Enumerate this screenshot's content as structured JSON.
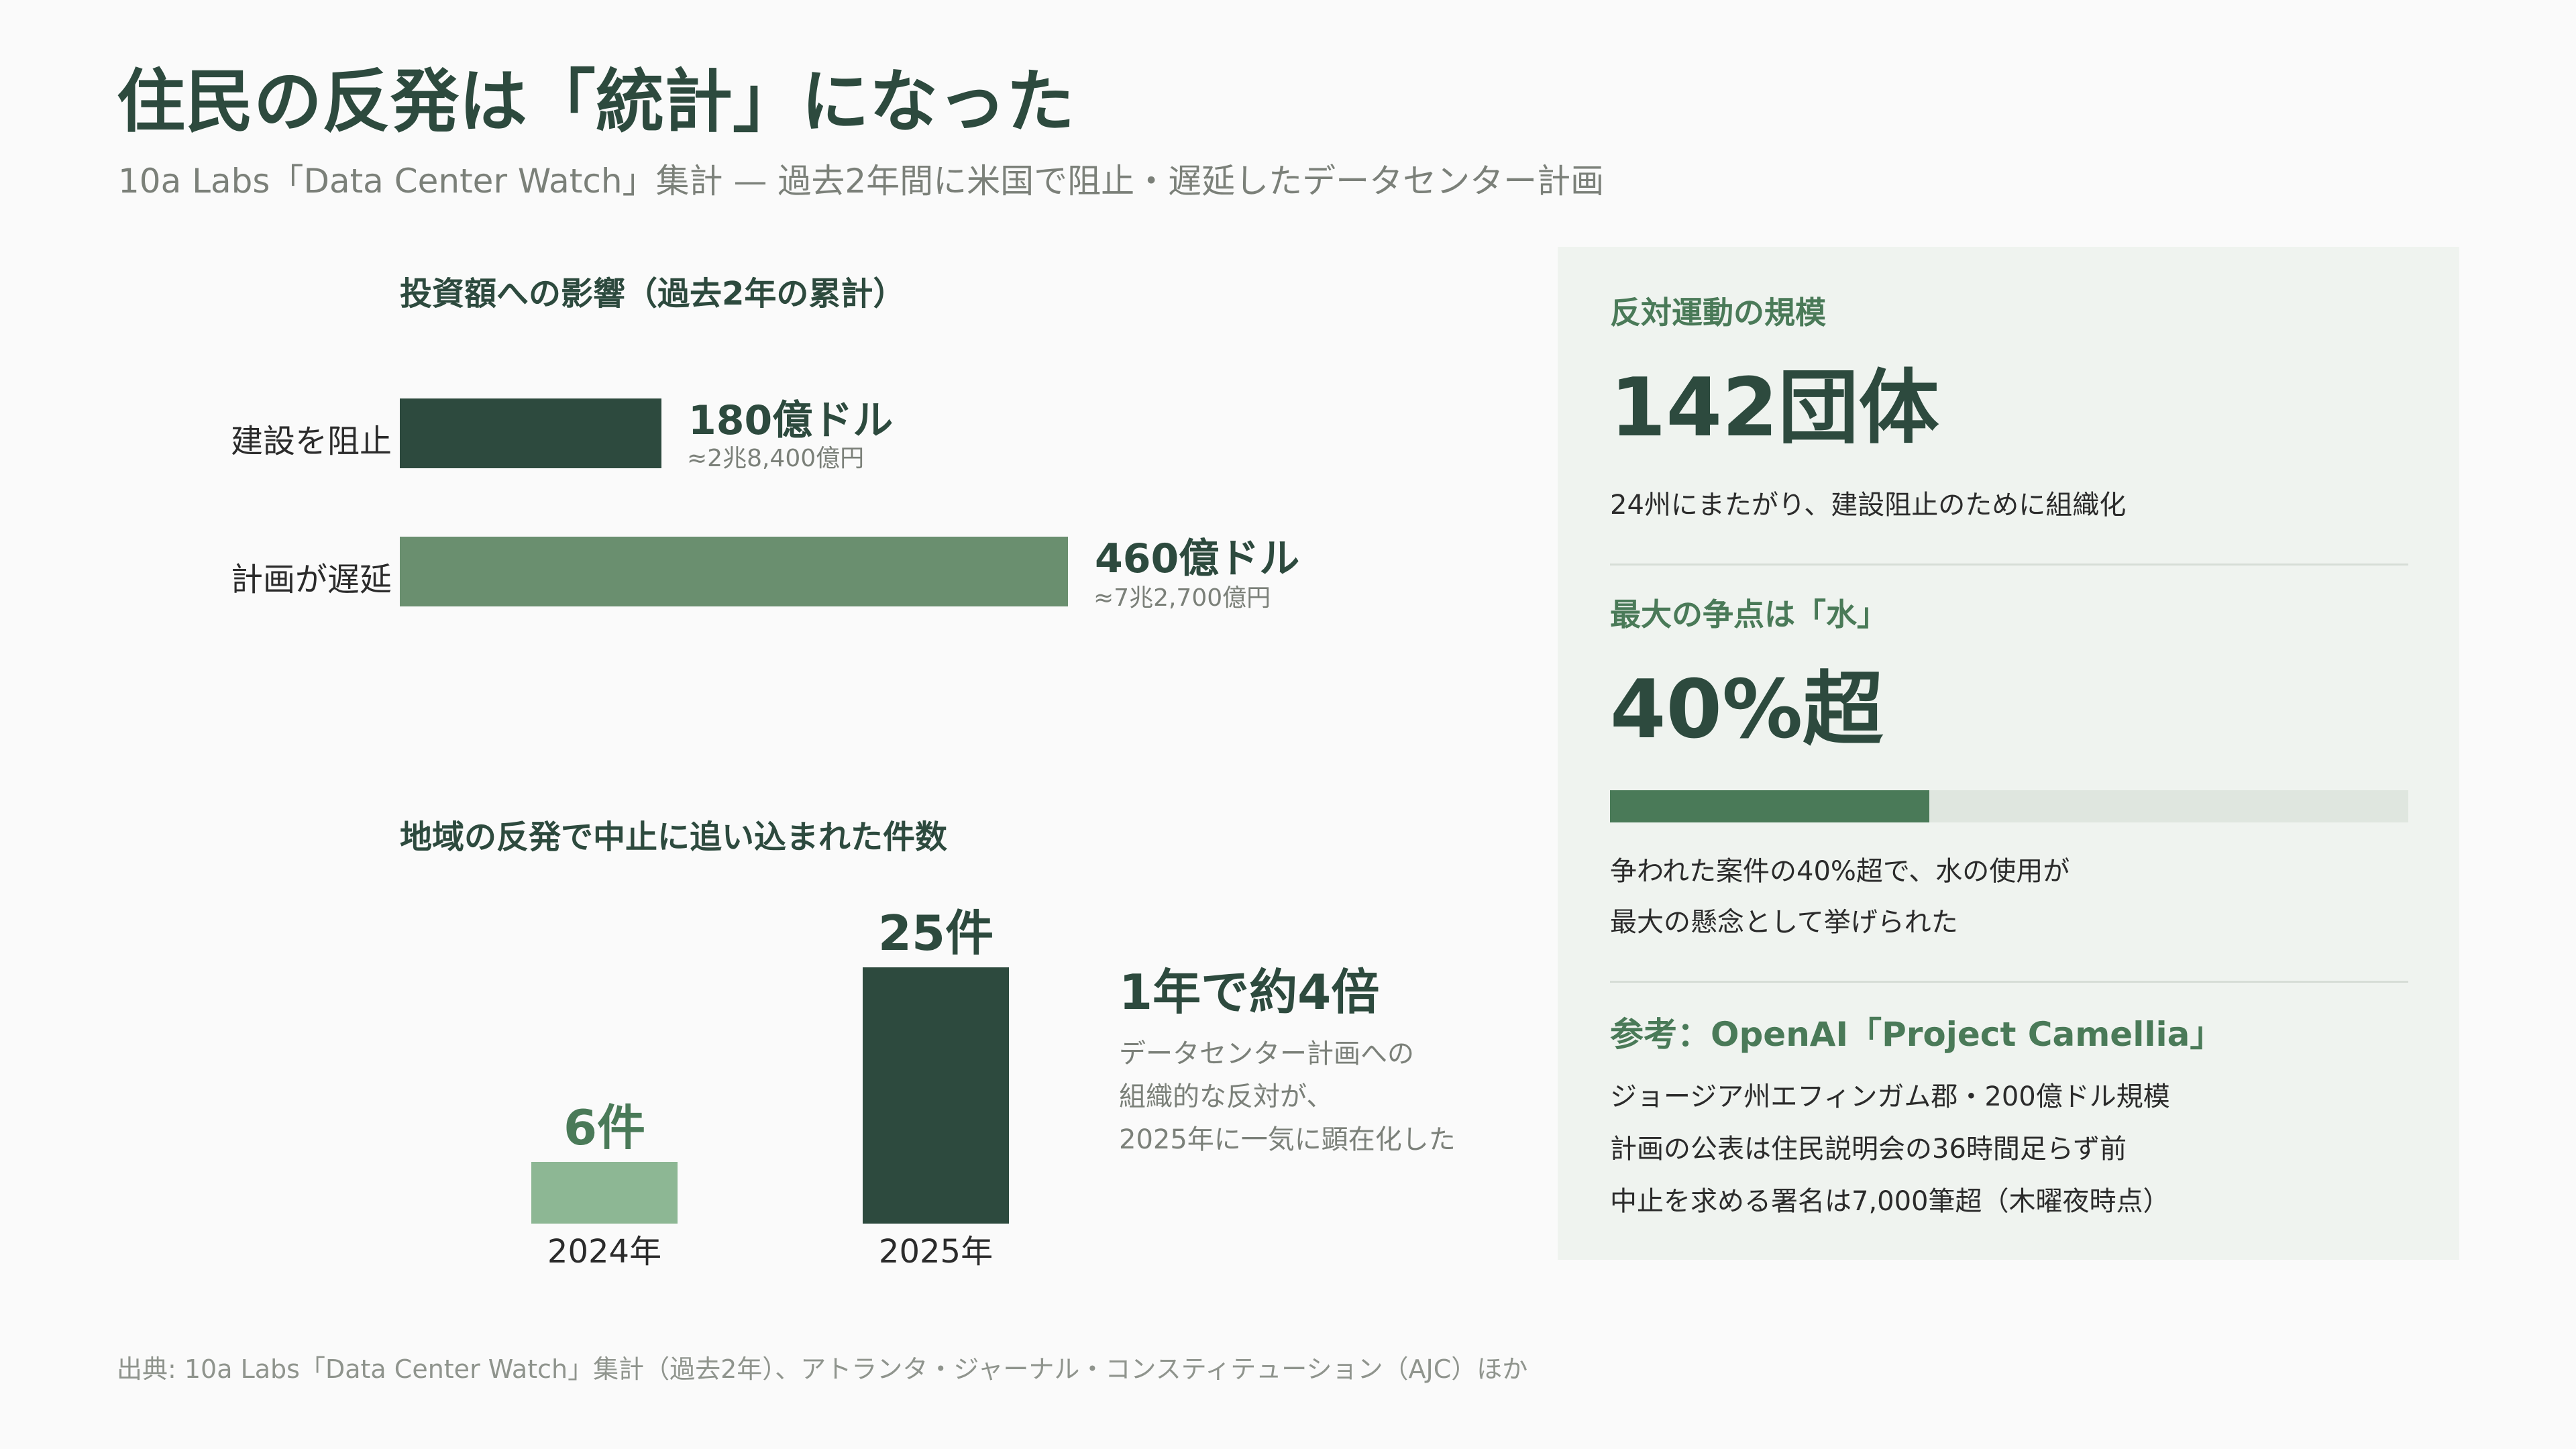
{
  "header": {
    "title": "住民の反発は「統計」になった",
    "subtitle": "10a Labs「Data Center Watch」集計 — 過去2年間に米国で阻止・遅延したデータセンター計画"
  },
  "colors": {
    "dark_green": "#2d4a3e",
    "mid_green": "#6a8f6f",
    "light_green": "#8db794",
    "accent_green": "#4a7a58"
  },
  "chart_data": [
    {
      "type": "bar",
      "orientation": "horizontal",
      "title": "投資額への影響（過去2年の累計）",
      "categories": [
        "建設を阻止",
        "計画が遅延"
      ],
      "values": [
        180,
        460
      ],
      "value_labels": [
        "180億ドル",
        "460億ドル"
      ],
      "sub_labels": [
        "≈2兆8,400億円",
        "≈7兆2,700億円"
      ],
      "unit": "億ドル",
      "xlim": [
        0,
        460
      ],
      "grid": false,
      "legend": "none"
    },
    {
      "type": "bar",
      "orientation": "vertical",
      "title": "地域の反発で中止に追い込まれた件数",
      "categories": [
        "2024年",
        "2025年"
      ],
      "values": [
        6,
        25
      ],
      "value_labels": [
        "6件",
        "25件"
      ],
      "unit": "件",
      "ylim": [
        0,
        25
      ],
      "grid": false,
      "legend": "none",
      "annotation": {
        "headline": "1年で約4倍",
        "lines": [
          "データセンター計画への",
          "組織的な反対が、",
          "2025年に一気に顕在化した"
        ]
      }
    }
  ],
  "panel": {
    "opposition": {
      "heading": "反対運動の規模",
      "value": "142団体",
      "description": "24州にまたがり、建設阻止のために組織化"
    },
    "water": {
      "heading": "最大の争点は「水」",
      "value": "40%超",
      "progress_fraction": 0.4,
      "lines": [
        "争われた案件の40%超で、水の使用が",
        "最大の懸念として挙げられた"
      ]
    },
    "reference": {
      "heading": "参考：OpenAI「Project Camellia」",
      "lines": [
        "ジョージア州エフィンガム郡・200億ドル規模",
        "計画の公表は住民説明会の36時間足らず前",
        "中止を求める署名は7,000筆超（木曜夜時点）"
      ]
    }
  },
  "footer": {
    "source": "出典: 10a Labs「Data Center Watch」集計（過去2年）、アトランタ・ジャーナル・コンスティテューション（AJC）ほか"
  }
}
